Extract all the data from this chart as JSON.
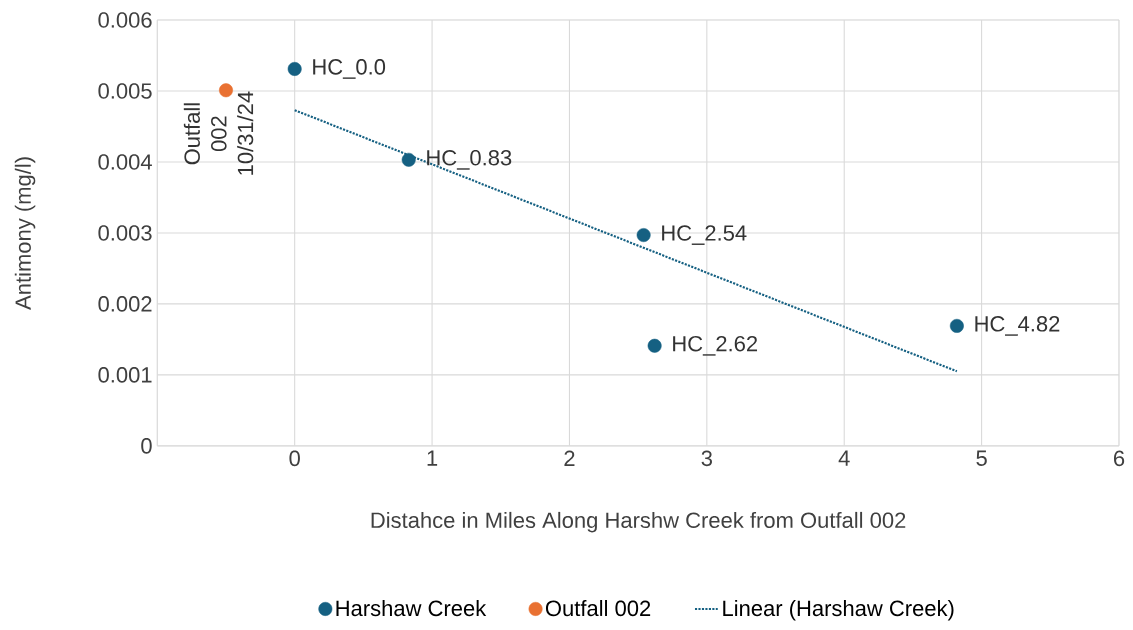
{
  "chart_data": {
    "type": "scatter",
    "xlabel": "Distahce in Miles Along Harshw Creek from Outfall 002",
    "ylabel": "Antimony (mg/l)",
    "xlim": [
      -1,
      6
    ],
    "xticks": [
      {
        "value": -1,
        "label": null
      },
      0,
      1,
      2,
      3,
      4,
      5,
      6
    ],
    "ylim": [
      0,
      0.006
    ],
    "yticks": [
      0,
      0.001,
      0.002,
      0.003,
      0.004,
      0.005,
      0.006
    ],
    "grid": true,
    "legend": "bottom",
    "series": [
      {
        "name": "Harshaw Creek",
        "color": "#156082",
        "marker": "circle",
        "x": [
          0,
          0.83,
          2.54,
          2.62,
          4.82
        ],
        "values": [
          0.00531,
          0.00403,
          0.00297,
          0.00141,
          0.00169
        ]
      },
      {
        "name": "Outfall 002",
        "color": "#e97132",
        "marker": "circle",
        "x": [
          -0.5
        ],
        "values": [
          0.00501
        ]
      },
      {
        "name": "Linear (Harshaw Creek)",
        "type": "line",
        "line_style": "dotted",
        "marker": "none",
        "color": "#156082",
        "x": [
          0,
          4.82
        ],
        "values": [
          0.00473,
          0.00105
        ]
      }
    ],
    "annotations": [
      {
        "text": "HC_0.0",
        "x": 0,
        "y": 0.00531
      },
      {
        "text": "HC_0.83",
        "x": 0.83,
        "y": 0.00403
      },
      {
        "text": "HC_2.54",
        "x": 2.54,
        "y": 0.00297
      },
      {
        "text": "HC_2.62",
        "x": 2.62,
        "y": 0.00141
      },
      {
        "text": "HC_4.82",
        "x": 4.82,
        "y": 0.00169
      },
      {
        "text": "Outfall 002 10/31/24",
        "x": -0.5,
        "y": 0.00501
      }
    ]
  }
}
